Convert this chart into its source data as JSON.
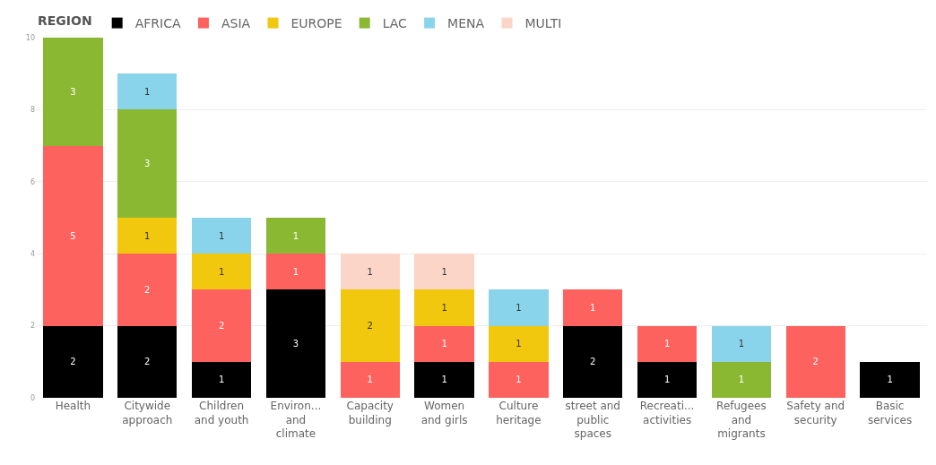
{
  "chart_data": {
    "type": "bar",
    "stacked": true,
    "legend_title": "REGION",
    "legend": "top left",
    "data_labels": true,
    "grid": "y",
    "categories": [
      "Health",
      "Citywide\napproach",
      "Children\nand youth",
      "Environ...\nand\nclimate",
      "Capacity\nbuilding",
      "Women\nand girls",
      "Culture\nheritage",
      "street and\npublic\nspaces",
      "Recreati...\nactivities",
      "Refugees\nand\nmigrants",
      "Safety and\nsecurity",
      "Basic\nservices"
    ],
    "ylim": [
      0,
      10
    ],
    "yticks": [
      0,
      2,
      4,
      6,
      8,
      10
    ],
    "series": [
      {
        "name": "AFRICA",
        "color": "#000000",
        "values": [
          2,
          2,
          1,
          3,
          null,
          1,
          null,
          2,
          1,
          null,
          null,
          1
        ]
      },
      {
        "name": "ASIA",
        "color": "#fd625e",
        "values": [
          5,
          2,
          2,
          1,
          1,
          1,
          1,
          1,
          1,
          null,
          2,
          null
        ]
      },
      {
        "name": "EUROPE",
        "color": "#f2c80f",
        "values": [
          null,
          1,
          1,
          null,
          2,
          1,
          1,
          null,
          null,
          null,
          null,
          null
        ]
      },
      {
        "name": "LAC",
        "color": "#8ab833",
        "values": [
          3,
          3,
          null,
          1,
          null,
          null,
          null,
          null,
          null,
          1,
          null,
          null
        ]
      },
      {
        "name": "MENA",
        "color": "#8ad4eb",
        "values": [
          null,
          1,
          1,
          null,
          null,
          null,
          1,
          null,
          null,
          1,
          null,
          null
        ]
      },
      {
        "name": "MULTI",
        "color": "#fbd5c8",
        "values": [
          null,
          null,
          null,
          null,
          1,
          1,
          null,
          null,
          null,
          null,
          null,
          null
        ]
      }
    ]
  }
}
